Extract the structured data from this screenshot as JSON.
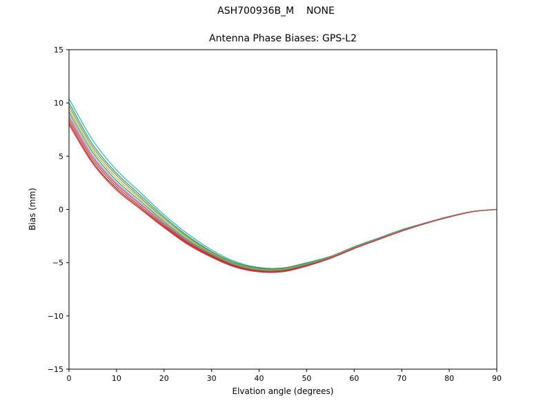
{
  "header": {
    "title": "ASH700936B_M    NONE",
    "subtitle": "Antenna Phase Biases: GPS-L2"
  },
  "chart_data": {
    "type": "line",
    "title": "ASH700936B_M    NONE",
    "subtitle": "Antenna Phase Biases: GPS-L2",
    "xlabel": "Elvation angle (degrees)",
    "ylabel": "Bias (mm)",
    "xlim": [
      0,
      90
    ],
    "ylim": [
      -15,
      15
    ],
    "xticks": [
      0,
      10,
      20,
      30,
      40,
      50,
      60,
      70,
      80,
      90
    ],
    "yticks": [
      -15,
      -10,
      -5,
      0,
      5,
      10,
      15
    ],
    "grid": false,
    "legend": "none",
    "x": [
      0,
      5,
      10,
      15,
      20,
      25,
      30,
      35,
      40,
      45,
      50,
      55,
      60,
      65,
      70,
      75,
      80,
      85,
      90
    ],
    "series": [
      {
        "name": "series-1",
        "color": "#17becf",
        "values": [
          10.4,
          6.5,
          3.7,
          1.6,
          -0.5,
          -2.3,
          -3.8,
          -4.9,
          -5.45,
          -5.5,
          -5.0,
          -4.4,
          -3.5,
          -2.7,
          -1.9,
          -1.25,
          -0.65,
          -0.18,
          0.0
        ]
      },
      {
        "name": "series-2",
        "color": "#2ca02c",
        "values": [
          10.0,
          6.1,
          3.4,
          1.35,
          -0.7,
          -2.5,
          -3.95,
          -5.0,
          -5.5,
          -5.5,
          -5.05,
          -4.42,
          -3.52,
          -2.74,
          -1.94,
          -1.27,
          -0.67,
          -0.19,
          0.0
        ]
      },
      {
        "name": "series-3",
        "color": "#7f7f7f",
        "values": [
          9.7,
          5.85,
          3.2,
          1.15,
          -0.85,
          -2.62,
          -4.02,
          -5.06,
          -5.57,
          -5.57,
          -5.1,
          -4.45,
          -3.55,
          -2.76,
          -1.96,
          -1.28,
          -0.68,
          -0.19,
          0.0
        ]
      },
      {
        "name": "series-4",
        "color": "#bcbd22",
        "values": [
          9.4,
          5.6,
          2.95,
          1.0,
          -1.0,
          -2.74,
          -4.1,
          -5.12,
          -5.63,
          -5.63,
          -5.14,
          -4.48,
          -3.57,
          -2.78,
          -1.98,
          -1.29,
          -0.69,
          -0.2,
          0.0
        ]
      },
      {
        "name": "series-5",
        "color": "#1b9e77",
        "values": [
          9.15,
          5.35,
          2.7,
          0.8,
          -1.15,
          -2.86,
          -4.18,
          -5.18,
          -5.68,
          -5.68,
          -5.18,
          -4.5,
          -3.6,
          -2.8,
          -2.0,
          -1.3,
          -0.7,
          -0.2,
          0.0
        ]
      },
      {
        "name": "series-6",
        "color": "#e377c2",
        "values": [
          8.9,
          5.1,
          2.5,
          0.62,
          -1.27,
          -2.95,
          -4.25,
          -5.23,
          -5.72,
          -5.72,
          -5.22,
          -4.52,
          -3.62,
          -2.81,
          -2.01,
          -1.31,
          -0.7,
          -0.2,
          0.0
        ]
      },
      {
        "name": "series-7",
        "color": "#8c564b",
        "values": [
          8.65,
          4.9,
          2.35,
          0.48,
          -1.38,
          -3.03,
          -4.3,
          -5.28,
          -5.76,
          -5.75,
          -5.25,
          -4.55,
          -3.64,
          -2.83,
          -2.02,
          -1.31,
          -0.71,
          -0.2,
          0.0
        ]
      },
      {
        "name": "series-8",
        "color": "#d62728",
        "values": [
          8.4,
          4.68,
          2.15,
          0.3,
          -1.5,
          -3.13,
          -4.38,
          -5.33,
          -5.8,
          -5.79,
          -5.28,
          -4.57,
          -3.66,
          -2.84,
          -2.03,
          -1.32,
          -0.71,
          -0.21,
          0.0
        ]
      },
      {
        "name": "series-9",
        "color": "#b22222",
        "values": [
          8.15,
          4.45,
          1.95,
          0.15,
          -1.62,
          -3.22,
          -4.45,
          -5.39,
          -5.85,
          -5.83,
          -5.3,
          -4.59,
          -3.67,
          -2.85,
          -2.04,
          -1.33,
          -0.72,
          -0.21,
          0.0
        ]
      },
      {
        "name": "series-10",
        "color": "#c44e52",
        "values": [
          7.95,
          4.3,
          1.8,
          0.03,
          -1.72,
          -3.3,
          -4.5,
          -5.43,
          -5.88,
          -5.86,
          -5.33,
          -4.61,
          -3.69,
          -2.86,
          -2.05,
          -1.33,
          -0.72,
          -0.21,
          0.0
        ]
      }
    ]
  }
}
